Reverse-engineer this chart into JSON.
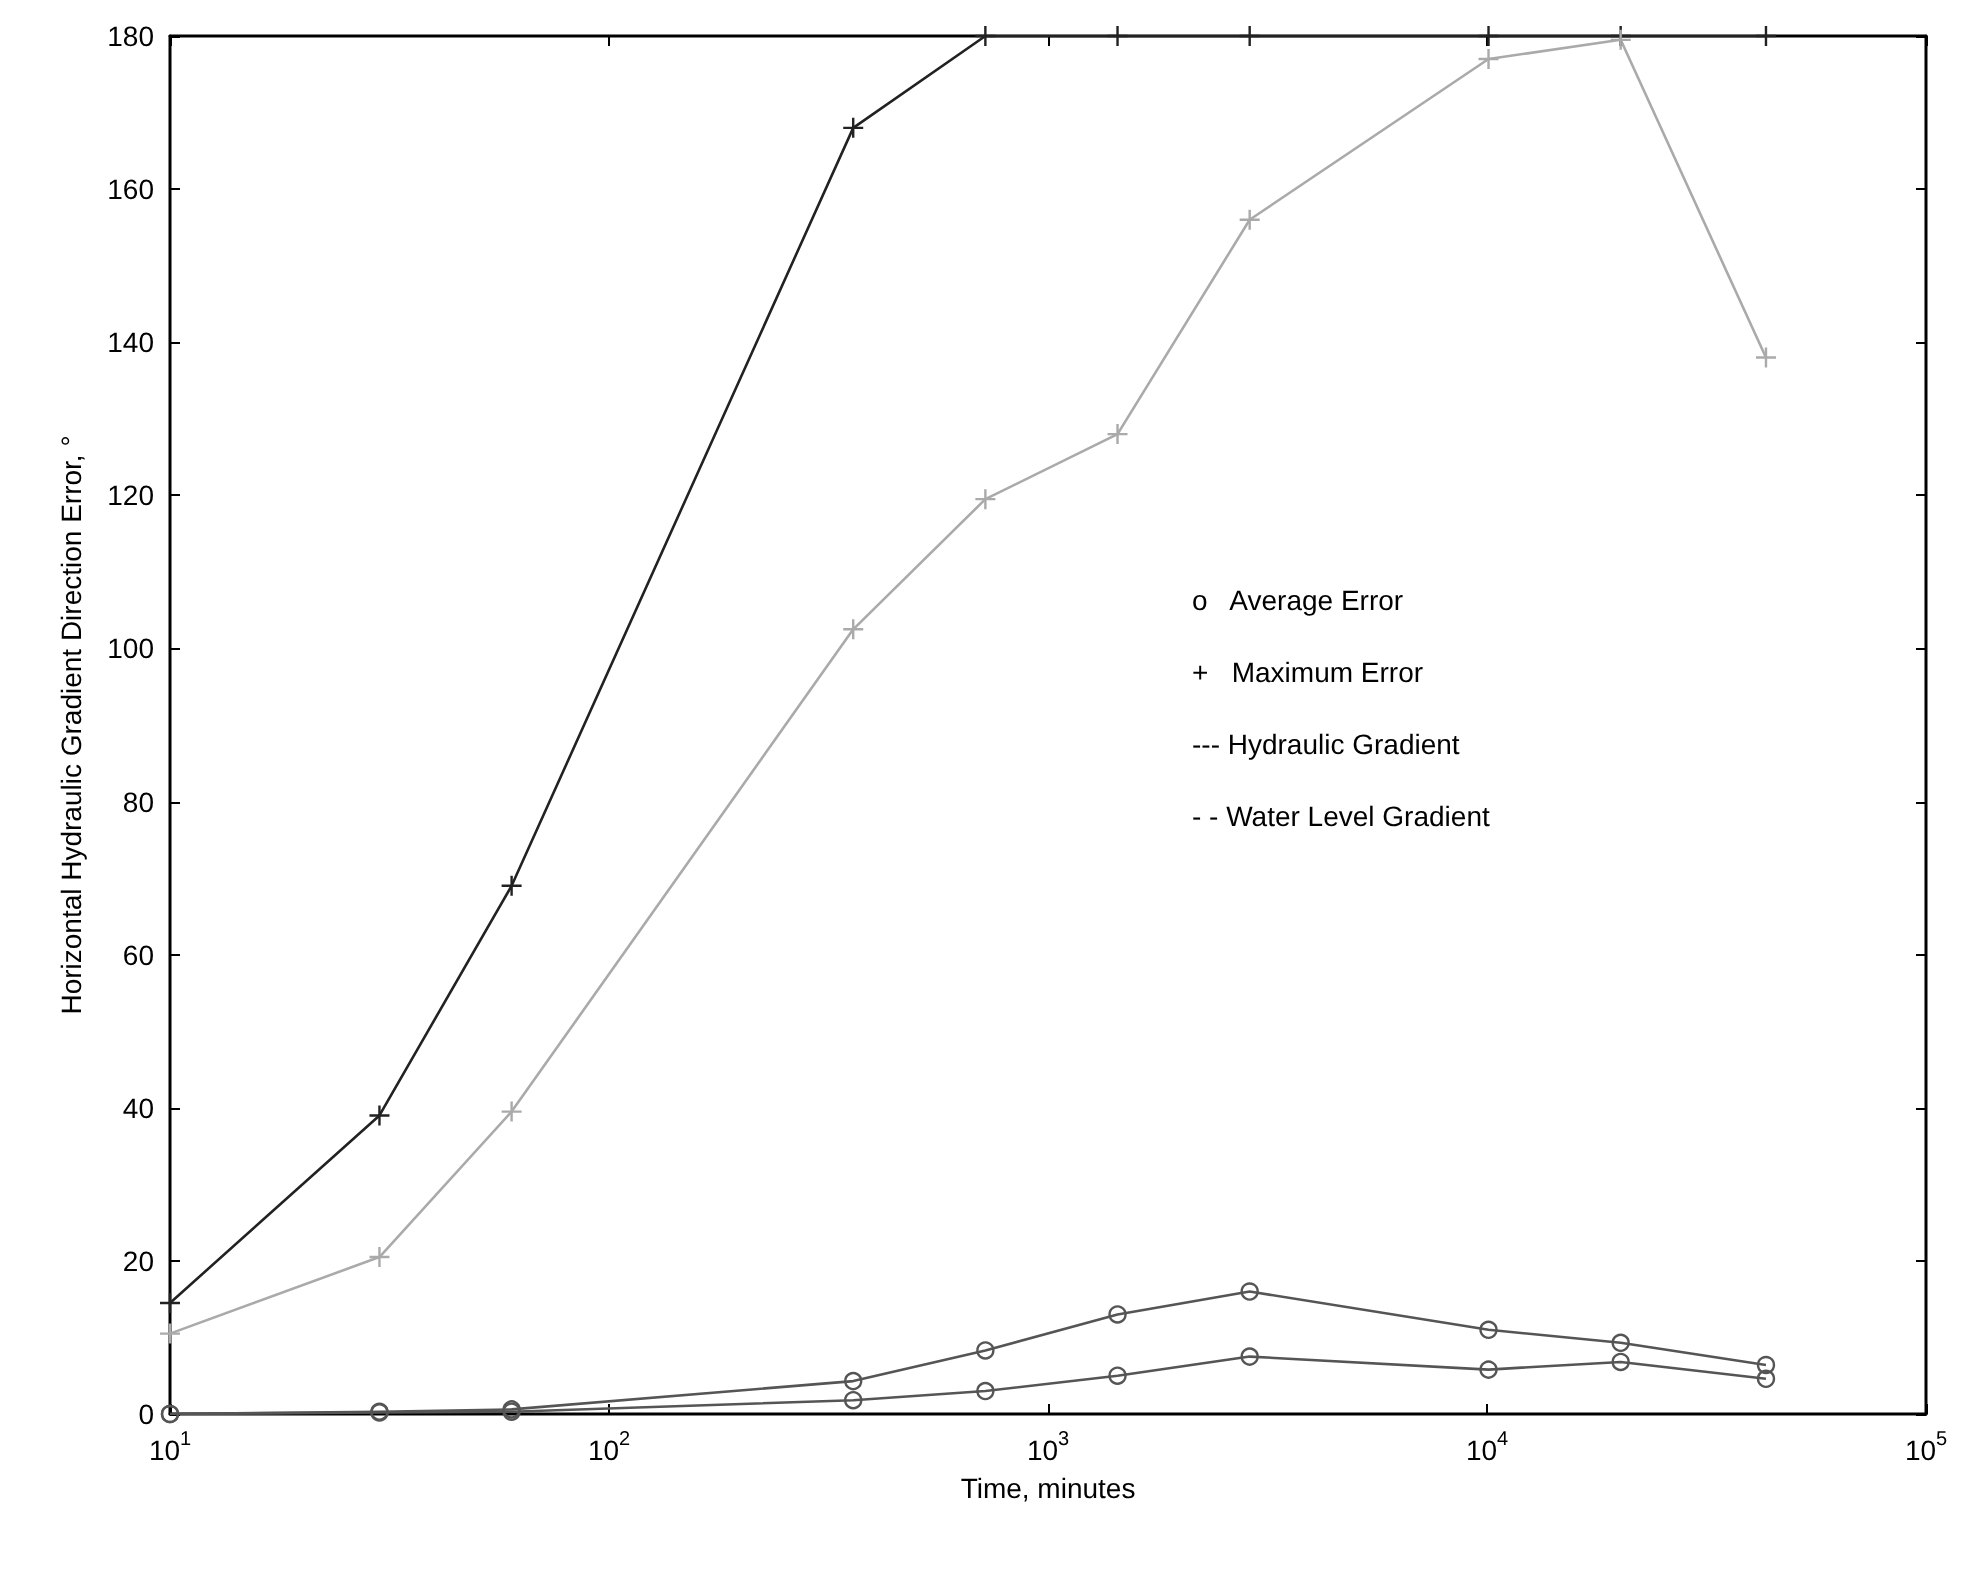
{
  "chart_data": {
    "type": "line",
    "xlabel": "Time, minutes",
    "ylabel": "Horizontal Hydraulic Gradient Direction Error, °",
    "x": [
      10,
      30,
      60,
      360,
      720,
      1440,
      2880,
      10080,
      20160,
      43200
    ],
    "series": [
      {
        "color": "#222222",
        "marker": "cross",
        "values": [
          14.5,
          39,
          69,
          168,
          180,
          180,
          180,
          180,
          180,
          180
        ]
      },
      {
        "color": "#aaaaaa",
        "marker": "cross",
        "values": [
          10.5,
          20.5,
          39.5,
          102.5,
          119.5,
          128,
          156,
          177,
          179.5,
          138
        ]
      },
      {
        "color": "#555555",
        "marker": "circle",
        "values": [
          0,
          0.3,
          0.6,
          4.3,
          8.3,
          13,
          16,
          11,
          9.3,
          6.4
        ]
      },
      {
        "color": "#555555",
        "marker": "circle",
        "values": [
          0,
          0.2,
          0.3,
          1.8,
          3,
          5,
          7.5,
          5.8,
          6.8,
          4.6
        ]
      }
    ],
    "log": "x",
    "xlim": [
      10,
      100000
    ],
    "xticks": [
      {
        "value": 10,
        "label": "10$^{1}$"
      },
      {
        "value": 100,
        "label": "10$^{2}$"
      },
      {
        "value": 1000,
        "label": "10$^{3}$"
      },
      {
        "value": 10000,
        "label": "10$^{4}$"
      },
      {
        "value": 100000,
        "label": "10$^{5}$"
      }
    ],
    "ylim": [
      0,
      180
    ],
    "yticks": [
      0,
      20,
      40,
      60,
      80,
      100,
      120,
      140,
      160,
      180
    ],
    "annotations": [
      "o   Average Error",
      "+   Maximum Error",
      "--- Hydraulic Gradient",
      "- - Water Level Gradient"
    ]
  }
}
